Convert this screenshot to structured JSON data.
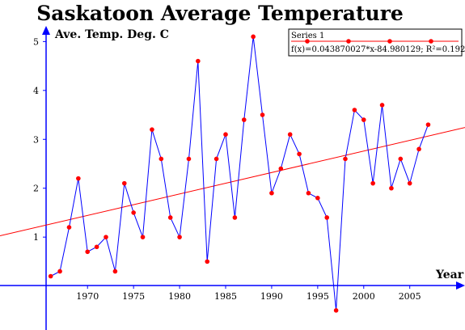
{
  "chart_data": {
    "type": "line",
    "title": "Saskatoon  Average Temperature",
    "ylabel": "Ave. Temp. Deg. C",
    "xlabel": "Year",
    "xlim": [
      1965.5,
      2011
    ],
    "ylim": [
      -0.9,
      5.85
    ],
    "x_ticks": [
      1970,
      1975,
      1980,
      1985,
      1990,
      1995,
      2000,
      2005
    ],
    "y_ticks": [
      1,
      2,
      3,
      4,
      5
    ],
    "x_tick_labels": [
      "1970",
      "1975",
      "1980",
      "1985",
      "1990",
      "1995",
      "2000",
      "2005"
    ],
    "y_tick_labels": [
      "1",
      "2",
      "3",
      "4",
      "5"
    ],
    "series": [
      {
        "name": "Series 1",
        "color": "#0000ff",
        "marker_color": "#ff0000",
        "x": [
          1966,
          1967,
          1968,
          1969,
          1970,
          1971,
          1972,
          1973,
          1974,
          1975,
          1976,
          1977,
          1978,
          1979,
          1980,
          1981,
          1982,
          1983,
          1984,
          1985,
          1986,
          1987,
          1988,
          1989,
          1990,
          1991,
          1992,
          1993,
          1994,
          1995,
          1996,
          1997,
          1998,
          1999,
          2000,
          2001,
          2002,
          2003,
          2004,
          2005,
          2006,
          2007
        ],
        "y": [
          0.2,
          0.3,
          1.2,
          2.2,
          0.7,
          0.8,
          1.0,
          0.3,
          2.1,
          1.5,
          1.0,
          3.2,
          2.6,
          1.4,
          1.0,
          2.6,
          4.6,
          0.5,
          2.6,
          3.1,
          1.4,
          3.4,
          5.1,
          3.5,
          1.9,
          2.4,
          3.1,
          2.7,
          1.9,
          1.8,
          1.4,
          -0.5,
          2.6,
          3.6,
          3.4,
          2.1,
          3.7,
          2.0,
          2.6,
          2.1,
          2.8,
          3.3
        ]
      }
    ],
    "trendline": {
      "color": "#ff0000",
      "slope": 0.043870027,
      "intercept": -84.980129,
      "equation": "f(x)=0.043870027*x-84.980129; R²=0.1924"
    },
    "legend": {
      "placement": "top-right",
      "entries": [
        "Series 1"
      ]
    },
    "grid": false
  }
}
